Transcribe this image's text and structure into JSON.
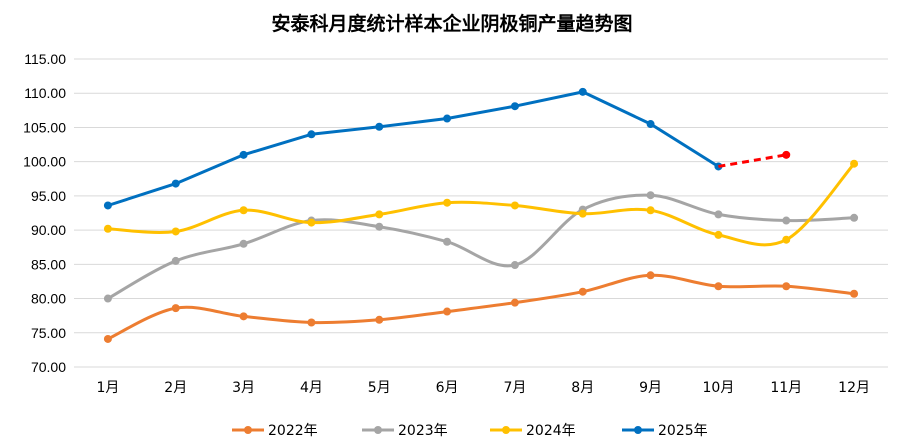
{
  "chart_data": {
    "type": "line",
    "title": "安泰科月度统计样本企业阴极铜产量趋势图",
    "categories": [
      "1月",
      "2月",
      "3月",
      "4月",
      "5月",
      "6月",
      "7月",
      "8月",
      "9月",
      "10月",
      "11月",
      "12月"
    ],
    "ylim": [
      70,
      115
    ],
    "yticks": [
      "70.00",
      "75.00",
      "80.00",
      "85.00",
      "90.00",
      "95.00",
      "100.00",
      "105.00",
      "110.00",
      "115.00"
    ],
    "ytick_values": [
      70,
      75,
      80,
      85,
      90,
      95,
      100,
      105,
      110,
      115
    ],
    "grid": true,
    "legend_position": "bottom",
    "xlabel": "",
    "ylabel": "",
    "series": [
      {
        "name": "2022年",
        "color": "#ED7D31",
        "values": [
          74.1,
          78.6,
          77.4,
          76.5,
          76.9,
          78.1,
          79.4,
          81.0,
          83.4,
          81.8,
          81.8,
          80.7
        ]
      },
      {
        "name": "2023年",
        "color": "#A5A5A5",
        "values": [
          80.0,
          85.5,
          88.0,
          91.4,
          90.5,
          88.3,
          84.9,
          93.0,
          95.1,
          92.3,
          91.4,
          91.8
        ]
      },
      {
        "name": "2024年",
        "color": "#FFC000",
        "values": [
          90.2,
          89.8,
          92.9,
          91.1,
          92.3,
          94.0,
          93.6,
          92.4,
          92.9,
          89.3,
          88.6,
          99.7
        ]
      },
      {
        "name": "2025年",
        "color": "#0070C0",
        "values": [
          93.6,
          96.8,
          101.0,
          104.0,
          105.1,
          106.3,
          108.1,
          110.2,
          105.5,
          99.3,
          null,
          null
        ]
      }
    ],
    "forecast": {
      "from_index": 9,
      "to_index": 10,
      "values": [
        99.3,
        101.0
      ],
      "color": "#FF0000",
      "style": "dashed"
    }
  }
}
